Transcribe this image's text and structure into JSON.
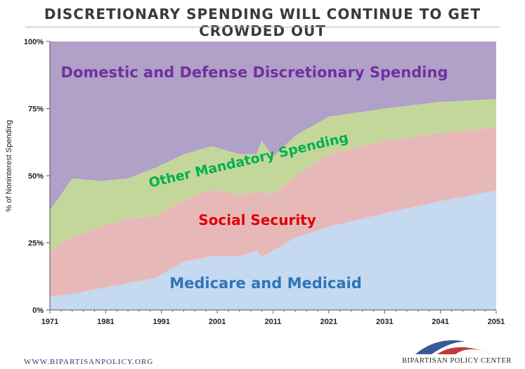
{
  "header": {
    "title": "DISCRETIONARY SPENDING WILL CONTINUE TO GET CROWDED OUT"
  },
  "footer": {
    "website": "WWW.BIPARTISANPOLICY.ORG",
    "organization": "BIPARTISAN POLICY CENTER"
  },
  "colors": {
    "medicare": "#c5d9f1",
    "social_security": "#e6b9b8",
    "other_mandatory": "#c4d79b",
    "discretionary": "#b1a0c7",
    "label_medicare": "#2e75b6",
    "label_social_security": "#e00000",
    "label_other_mandatory": "#00b050",
    "label_discretionary": "#7030a0",
    "logo_blue": "#3b5998",
    "logo_red": "#c0393b"
  },
  "chart_data": {
    "type": "area",
    "title": "DISCRETIONARY SPENDING WILL CONTINUE TO GET CROWDED OUT",
    "xlabel": "",
    "ylabel": "% of Noninterest Spending",
    "xlim": [
      1971,
      2051
    ],
    "ylim": [
      0,
      100
    ],
    "x_ticks": [
      "1971",
      "1981",
      "1991",
      "2001",
      "2011",
      "2021",
      "2031",
      "2041",
      "2051"
    ],
    "y_ticks": [
      "0%",
      "25%",
      "50%",
      "75%",
      "100%"
    ],
    "stacked": true,
    "x": [
      1971,
      1975,
      1980,
      1985,
      1990,
      1995,
      2000,
      2005,
      2008,
      2009,
      2011,
      2015,
      2021,
      2031,
      2041,
      2051
    ],
    "series": [
      {
        "name": "Medicare and Medicaid",
        "values": [
          5,
          6,
          8,
          10,
          12,
          18,
          20,
          20,
          22,
          20,
          22,
          27,
          31,
          36,
          40.5,
          44.5
        ]
      },
      {
        "name": "Social Security",
        "values": [
          17,
          21,
          23,
          24,
          23,
          23,
          25,
          23,
          22,
          24,
          21,
          23,
          27,
          27,
          25.5,
          23.5
        ]
      },
      {
        "name": "Other Mandatory Spending",
        "values": [
          15,
          22,
          17,
          15,
          18,
          17,
          16,
          15,
          14,
          19,
          14,
          15,
          14,
          12,
          11.5,
          10.5
        ]
      },
      {
        "name": "Domestic and Defense Discretionary Spending",
        "values": [
          63,
          51,
          52,
          51,
          47,
          42,
          39,
          42,
          42,
          37,
          43,
          35,
          28,
          25,
          22.5,
          21.5
        ]
      }
    ],
    "area_labels": {
      "medicare": "Medicare and Medicaid",
      "social_security": "Social Security",
      "other_mandatory": "Other Mandatory Spending",
      "discretionary": "Domestic and Defense Discretionary Spending"
    },
    "grid": false,
    "legend": "none"
  }
}
